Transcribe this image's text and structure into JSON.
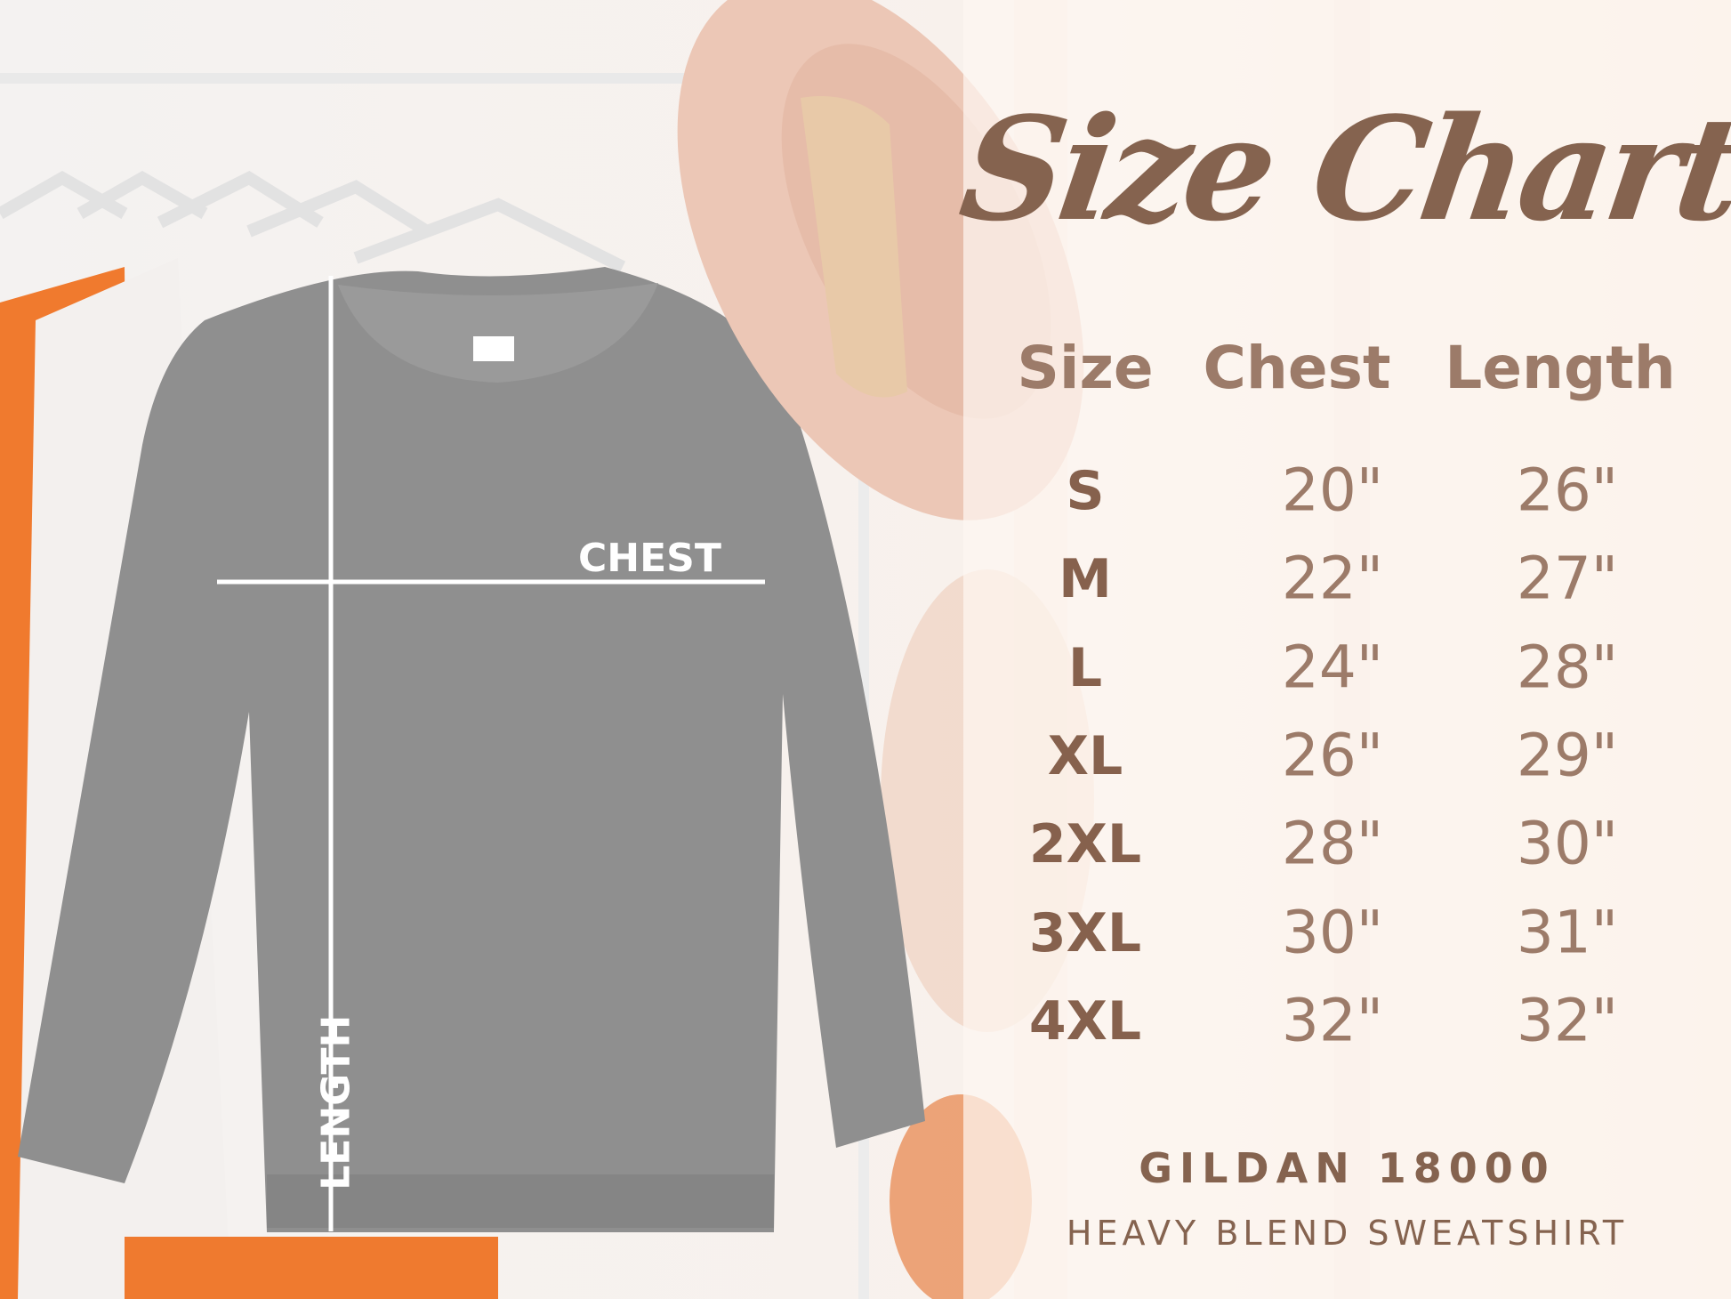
{
  "title": "Size Chart",
  "columns": [
    "Size",
    "Chest",
    "Length"
  ],
  "rows": [
    {
      "size": "S",
      "chest": "20\"",
      "length": "26\""
    },
    {
      "size": "M",
      "chest": "22\"",
      "length": "27\""
    },
    {
      "size": "L",
      "chest": "24\"",
      "length": "28\""
    },
    {
      "size": "XL",
      "chest": "26\"",
      "length": "29\""
    },
    {
      "size": "2XL",
      "chest": "28\"",
      "length": "30\""
    },
    {
      "size": "3XL",
      "chest": "30\"",
      "length": "31\""
    },
    {
      "size": "4XL",
      "chest": "32\"",
      "length": "32\""
    }
  ],
  "brand": "GILDAN 18000",
  "product": "HEAVY BLEND SWEATSHIRT",
  "measure_labels": {
    "chest": "CHEST",
    "length": "LENGTH"
  },
  "colors": {
    "text_brown": "#85634f",
    "text_light_brown": "#9c7b69",
    "sweatshirt": "#8e8e8e",
    "hat": "#ecc7b6"
  }
}
